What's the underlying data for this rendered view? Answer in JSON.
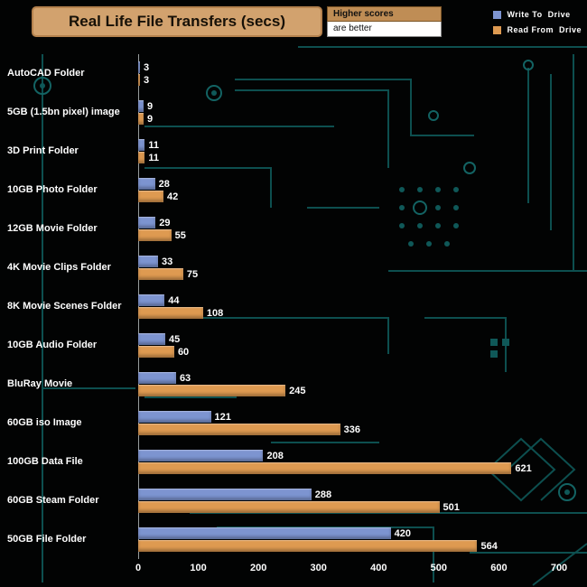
{
  "header": {
    "title": "Real Life File Transfers (secs)"
  },
  "note": {
    "line1": "Higher scores",
    "line2": "are better"
  },
  "legend": [
    {
      "label": "Write To  Drive",
      "color": "#7d94d0"
    },
    {
      "label": "Read From  Drive",
      "color": "#de9a51"
    }
  ],
  "chart_data": {
    "type": "bar",
    "orientation": "horizontal",
    "title": "Real Life File Transfers (secs)",
    "units": "seconds",
    "note": "Higher scores are better",
    "background_color": "#000000",
    "grid": false,
    "legend_position": "top-right",
    "categories": [
      "AutoCAD Folder",
      "5GB (1.5bn pixel) image",
      "3D Print Folder",
      "10GB Photo Folder",
      "12GB Movie Folder",
      "4K Movie Clips Folder",
      "8K Movie Scenes Folder",
      "10GB Audio Folder",
      "BluRay Movie",
      "60GB iso Image",
      "100GB Data File",
      "60GB Steam Folder",
      "50GB File Folder"
    ],
    "series": [
      {
        "name": "Write To Drive",
        "key": "write-to-drive",
        "color": "#7d94d0",
        "values": [
          3,
          9,
          11,
          28,
          29,
          33,
          44,
          45,
          63,
          121,
          208,
          288,
          420
        ]
      },
      {
        "name": "Read From Drive",
        "key": "read-from-drive",
        "color": "#de9a51",
        "values": [
          3,
          9,
          11,
          42,
          55,
          75,
          108,
          60,
          245,
          336,
          621,
          501,
          564
        ]
      }
    ],
    "xlim": [
      0,
      700
    ],
    "xticks": [
      0,
      100,
      200,
      300,
      400,
      500,
      600,
      700
    ],
    "value_labels": true
  }
}
